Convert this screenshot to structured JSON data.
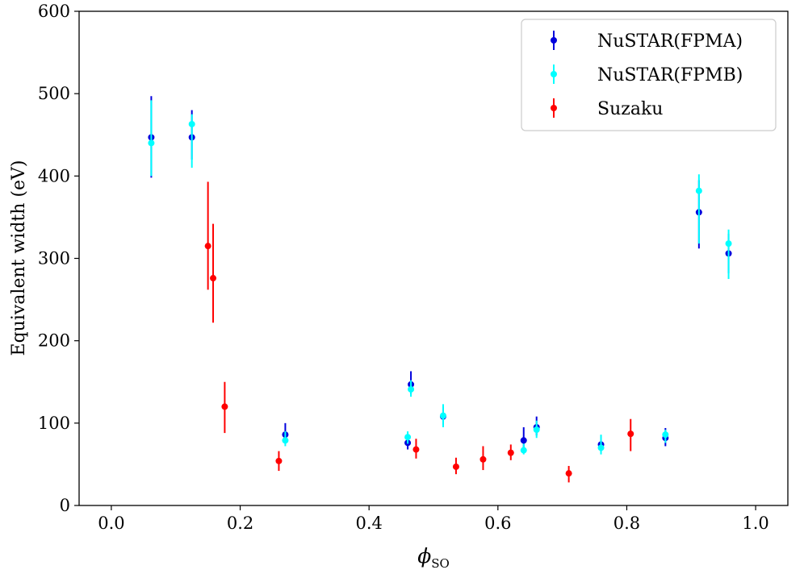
{
  "chart_data": {
    "type": "scatter",
    "title": "",
    "xlabel": "ϕ",
    "xlabel_subscript": "SO",
    "ylabel": "Equivalent width (eV)",
    "xlim": [
      -0.05,
      1.05
    ],
    "ylim": [
      0,
      600
    ],
    "xticks": [
      0.0,
      0.2,
      0.4,
      0.6,
      0.8,
      1.0
    ],
    "xtick_labels": [
      "0.0",
      "0.2",
      "0.4",
      "0.6",
      "0.8",
      "1.0"
    ],
    "yticks": [
      0,
      100,
      200,
      300,
      400,
      500,
      600
    ],
    "ytick_labels": [
      "0",
      "100",
      "200",
      "300",
      "400",
      "500",
      "600"
    ],
    "grid": false,
    "legend_position": "top-right",
    "series": [
      {
        "name": "NuSTAR(FPMA)",
        "color": "#0000dd",
        "points": [
          {
            "x": 0.062,
            "y": 447,
            "lo": 398,
            "hi": 497
          },
          {
            "x": 0.125,
            "y": 447,
            "lo": 420,
            "hi": 480
          },
          {
            "x": 0.27,
            "y": 86,
            "lo": 75,
            "hi": 100
          },
          {
            "x": 0.46,
            "y": 76,
            "lo": 68,
            "hi": 85
          },
          {
            "x": 0.465,
            "y": 147,
            "lo": 135,
            "hi": 163
          },
          {
            "x": 0.515,
            "y": 108,
            "lo": 98,
            "hi": 120
          },
          {
            "x": 0.64,
            "y": 79,
            "lo": 68,
            "hi": 95
          },
          {
            "x": 0.66,
            "y": 95,
            "lo": 85,
            "hi": 108
          },
          {
            "x": 0.76,
            "y": 74,
            "lo": 65,
            "hi": 85
          },
          {
            "x": 0.86,
            "y": 82,
            "lo": 72,
            "hi": 94
          },
          {
            "x": 0.912,
            "y": 356,
            "lo": 312,
            "hi": 395
          },
          {
            "x": 0.958,
            "y": 306,
            "lo": 282,
            "hi": 330
          }
        ]
      },
      {
        "name": "NuSTAR(FPMB)",
        "color": "#00ffff",
        "points": [
          {
            "x": 0.062,
            "y": 440,
            "lo": 400,
            "hi": 492
          },
          {
            "x": 0.125,
            "y": 463,
            "lo": 410,
            "hi": 475
          },
          {
            "x": 0.27,
            "y": 79,
            "lo": 72,
            "hi": 90
          },
          {
            "x": 0.46,
            "y": 83,
            "lo": 75,
            "hi": 90
          },
          {
            "x": 0.465,
            "y": 141,
            "lo": 132,
            "hi": 152
          },
          {
            "x": 0.515,
            "y": 109,
            "lo": 95,
            "hi": 123
          },
          {
            "x": 0.64,
            "y": 67,
            "lo": 62,
            "hi": 75
          },
          {
            "x": 0.66,
            "y": 92,
            "lo": 82,
            "hi": 103
          },
          {
            "x": 0.76,
            "y": 70,
            "lo": 62,
            "hi": 86
          },
          {
            "x": 0.86,
            "y": 86,
            "lo": 76,
            "hi": 92
          },
          {
            "x": 0.912,
            "y": 382,
            "lo": 318,
            "hi": 402
          },
          {
            "x": 0.958,
            "y": 318,
            "lo": 275,
            "hi": 335
          }
        ]
      },
      {
        "name": "Suzaku",
        "color": "#ff0000",
        "points": [
          {
            "x": 0.15,
            "y": 315,
            "lo": 262,
            "hi": 393
          },
          {
            "x": 0.158,
            "y": 276,
            "lo": 222,
            "hi": 342
          },
          {
            "x": 0.176,
            "y": 120,
            "lo": 88,
            "hi": 150
          },
          {
            "x": 0.26,
            "y": 54,
            "lo": 42,
            "hi": 66
          },
          {
            "x": 0.473,
            "y": 68,
            "lo": 57,
            "hi": 81
          },
          {
            "x": 0.535,
            "y": 47,
            "lo": 38,
            "hi": 58
          },
          {
            "x": 0.577,
            "y": 56,
            "lo": 43,
            "hi": 72
          },
          {
            "x": 0.62,
            "y": 64,
            "lo": 55,
            "hi": 74
          },
          {
            "x": 0.71,
            "y": 39,
            "lo": 28,
            "hi": 48
          },
          {
            "x": 0.806,
            "y": 87,
            "lo": 66,
            "hi": 105
          }
        ]
      }
    ]
  }
}
